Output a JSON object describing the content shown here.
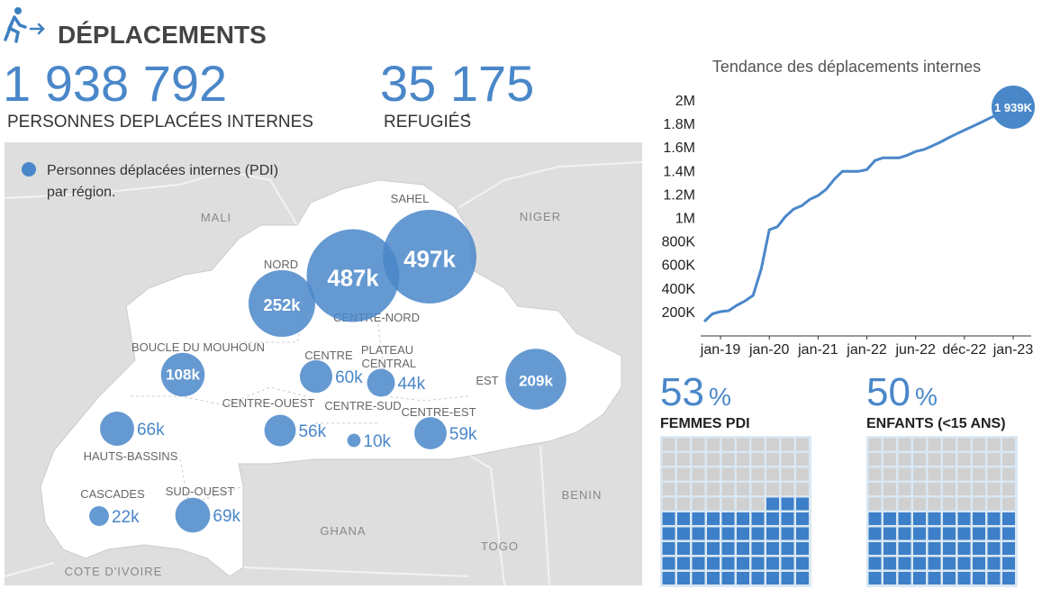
{
  "header": {
    "title": "DÉPLACEMENTS"
  },
  "stats": [
    {
      "value": "1 938 792",
      "label": "PERSONNES DEPLACÉES INTERNES"
    },
    {
      "value": "35 175",
      "label": "REFUGIÉS",
      "note": "*"
    }
  ],
  "map": {
    "legend": [
      "Personnes déplacées internes (PDI)",
      "par région."
    ],
    "countries": [
      "MALI",
      "NIGER",
      "BENIN",
      "GHANA",
      "TOGO",
      "COTE D'IVOIRE"
    ],
    "regions": [
      {
        "name": "SAHEL",
        "value": 497000,
        "label": "497k"
      },
      {
        "name": "CENTRE-NORD",
        "value": 487000,
        "label": "487k"
      },
      {
        "name": "NORD",
        "value": 252000,
        "label": "252k"
      },
      {
        "name": "BOUCLE DU MOUHOUN",
        "value": 108000,
        "label": "108k"
      },
      {
        "name": "CENTRE",
        "value": 60000,
        "label": "60k"
      },
      {
        "name": "PLATEAU CENTRAL",
        "value": 44000,
        "label": "44k"
      },
      {
        "name": "EST",
        "value": 209000,
        "label": "209k"
      },
      {
        "name": "CENTRE-OUEST",
        "value": 56000,
        "label": "56k"
      },
      {
        "name": "CENTRE-SUD",
        "value": 10000,
        "label": "10k"
      },
      {
        "name": "CENTRE-EST",
        "value": 59000,
        "label": "59k"
      },
      {
        "name": "HAUTS-BASSINS",
        "value": 66000,
        "label": "66k"
      },
      {
        "name": "CASCADES",
        "value": 22000,
        "label": "22k"
      },
      {
        "name": "SUD-OUEST",
        "value": 69000,
        "label": "69k"
      }
    ]
  },
  "chart_data": {
    "type": "line",
    "title": "Tendance des déplacements internes",
    "categories": [
      null,
      null,
      "jan-19",
      null,
      null,
      null,
      null,
      null,
      "jan-20",
      null,
      null,
      null,
      null,
      null,
      "jan-21",
      null,
      null,
      null,
      null,
      null,
      "jan-22",
      null,
      null,
      null,
      null,
      null,
      "jun-22",
      null,
      null,
      null,
      null,
      null,
      "déc-22",
      null,
      null,
      null,
      null,
      null,
      "jan-23"
    ],
    "series": [
      {
        "color": "#4a87c9",
        "values": [
          115000,
          180000,
          199000,
          207000,
          253000,
          289000,
          337000,
          560000,
          896000,
          921000,
          1010000,
          1072000,
          1100000,
          1155000,
          1187000,
          1240000,
          1325000,
          1393000,
          1393000,
          1393000,
          1407000,
          1485000,
          1508000,
          1508000,
          1508000,
          1530000,
          1562000,
          1578000,
          1608000,
          1640000,
          1677000,
          1710000,
          1743000,
          1775000,
          1808000,
          1841000,
          1874000,
          1906000,
          1939000
        ],
        "value_labels": [
          null,
          null,
          null,
          null,
          null,
          null,
          null,
          null,
          null,
          null,
          null,
          null,
          null,
          null,
          null,
          null,
          null,
          null,
          null,
          null,
          null,
          null,
          null,
          null,
          null,
          null,
          null,
          null,
          null,
          null,
          null,
          null,
          null,
          null,
          null,
          null,
          null,
          null,
          "1 939K"
        ]
      }
    ],
    "ylim": [
      0,
      2000000
    ],
    "yticks": [
      {
        "value": 200000,
        "label": "200K"
      },
      {
        "value": 400000,
        "label": "400K"
      },
      {
        "value": 600000,
        "label": "600K"
      },
      {
        "value": 800000,
        "label": "800K"
      },
      {
        "value": 1000000,
        "label": "1M"
      },
      {
        "value": 1200000,
        "label": "1.2M"
      },
      {
        "value": 1400000,
        "label": "1.4M"
      },
      {
        "value": 1600000,
        "label": "1.6M"
      },
      {
        "value": 1800000,
        "label": "1.8M"
      },
      {
        "value": 2000000,
        "label": "2M"
      }
    ]
  },
  "waffles": [
    {
      "value": 53,
      "unit": "%",
      "label": "FEMMES PDI"
    },
    {
      "value": 50,
      "unit": "%",
      "label": "ENFANTS (<15 ANS)"
    }
  ]
}
